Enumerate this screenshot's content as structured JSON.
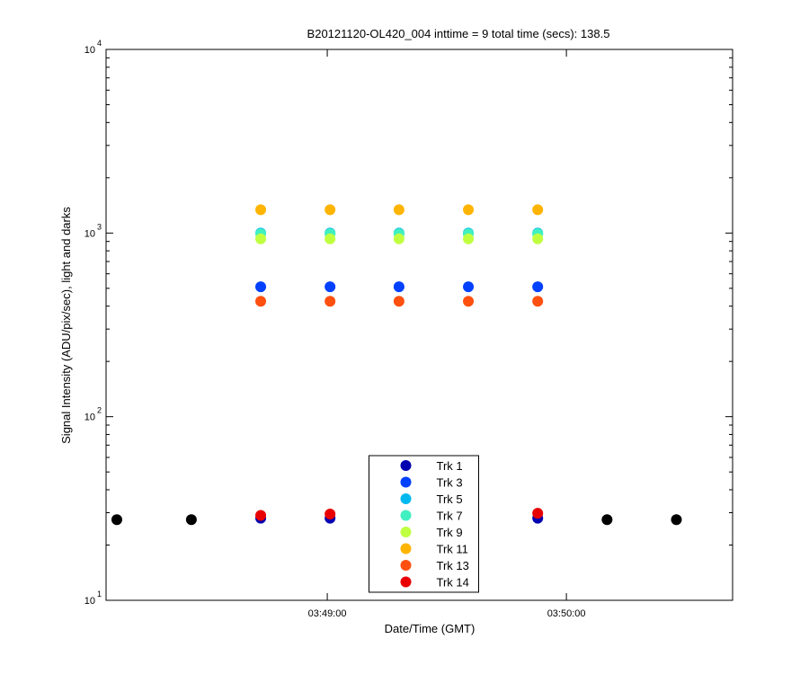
{
  "chart_data": {
    "type": "scatter",
    "title": "B20121120-OL420_004 inttime = 9 total time (secs): 138.5",
    "x_label": "Date/Time (GMT)",
    "y_label": "Signal Intensity (ADU/pix/sec), light and darks",
    "x": [
      13687.2,
      13705.9,
      13723.3,
      13740.7,
      13758.0,
      13775.4,
      13792.8,
      13810.2,
      13827.6
    ],
    "xlim": [
      13684.5,
      13841.7
    ],
    "xticks": [
      {
        "value": 13740,
        "label": "03:49:00"
      },
      {
        "value": 13800,
        "label": "03:50:00"
      }
    ],
    "ylim": [
      10,
      10000
    ],
    "y_scale": "log",
    "yticks": [
      {
        "value": 10,
        "label": "10",
        "exponent": "1"
      },
      {
        "value": 100,
        "label": "10",
        "exponent": "2"
      },
      {
        "value": 1000,
        "label": "10",
        "exponent": "3"
      },
      {
        "value": 10000,
        "label": "10",
        "exponent": "4"
      }
    ],
    "grid": false,
    "legend": "lower center",
    "series": [
      {
        "color": "#000000",
        "values": [
          27.5,
          27.5,
          null,
          null,
          null,
          null,
          null,
          27.5,
          27.5
        ]
      },
      {
        "name": "Trk 1",
        "color": "#0000b0",
        "values": [
          null,
          null,
          28,
          28,
          28,
          28,
          28,
          null,
          null
        ]
      },
      {
        "name": "Trk 3",
        "color": "#0040ff",
        "values": [
          null,
          null,
          510,
          510,
          510,
          510,
          510,
          null,
          null
        ]
      },
      {
        "name": "Trk 5",
        "color": "#00b8f0",
        "values": [
          null,
          null,
          1000,
          1000,
          1000,
          1000,
          1000,
          null,
          null
        ]
      },
      {
        "name": "Trk 7",
        "color": "#40f0c0",
        "values": [
          null,
          null,
          990,
          990,
          990,
          990,
          990,
          null,
          null
        ]
      },
      {
        "name": "Trk 9",
        "color": "#c0ff40",
        "values": [
          null,
          null,
          930,
          930,
          930,
          930,
          930,
          null,
          null
        ]
      },
      {
        "name": "Trk 11",
        "color": "#ffb400",
        "values": [
          null,
          null,
          1340,
          1340,
          1340,
          1340,
          1340,
          null,
          null
        ]
      },
      {
        "name": "Trk 13",
        "color": "#ff5010",
        "values": [
          null,
          null,
          425,
          425,
          425,
          425,
          425,
          null,
          null
        ]
      },
      {
        "name": "Trk 14",
        "color": "#e80000",
        "values": [
          null,
          null,
          29,
          29.5,
          29.5,
          29.5,
          29.8,
          null,
          null
        ]
      }
    ]
  }
}
